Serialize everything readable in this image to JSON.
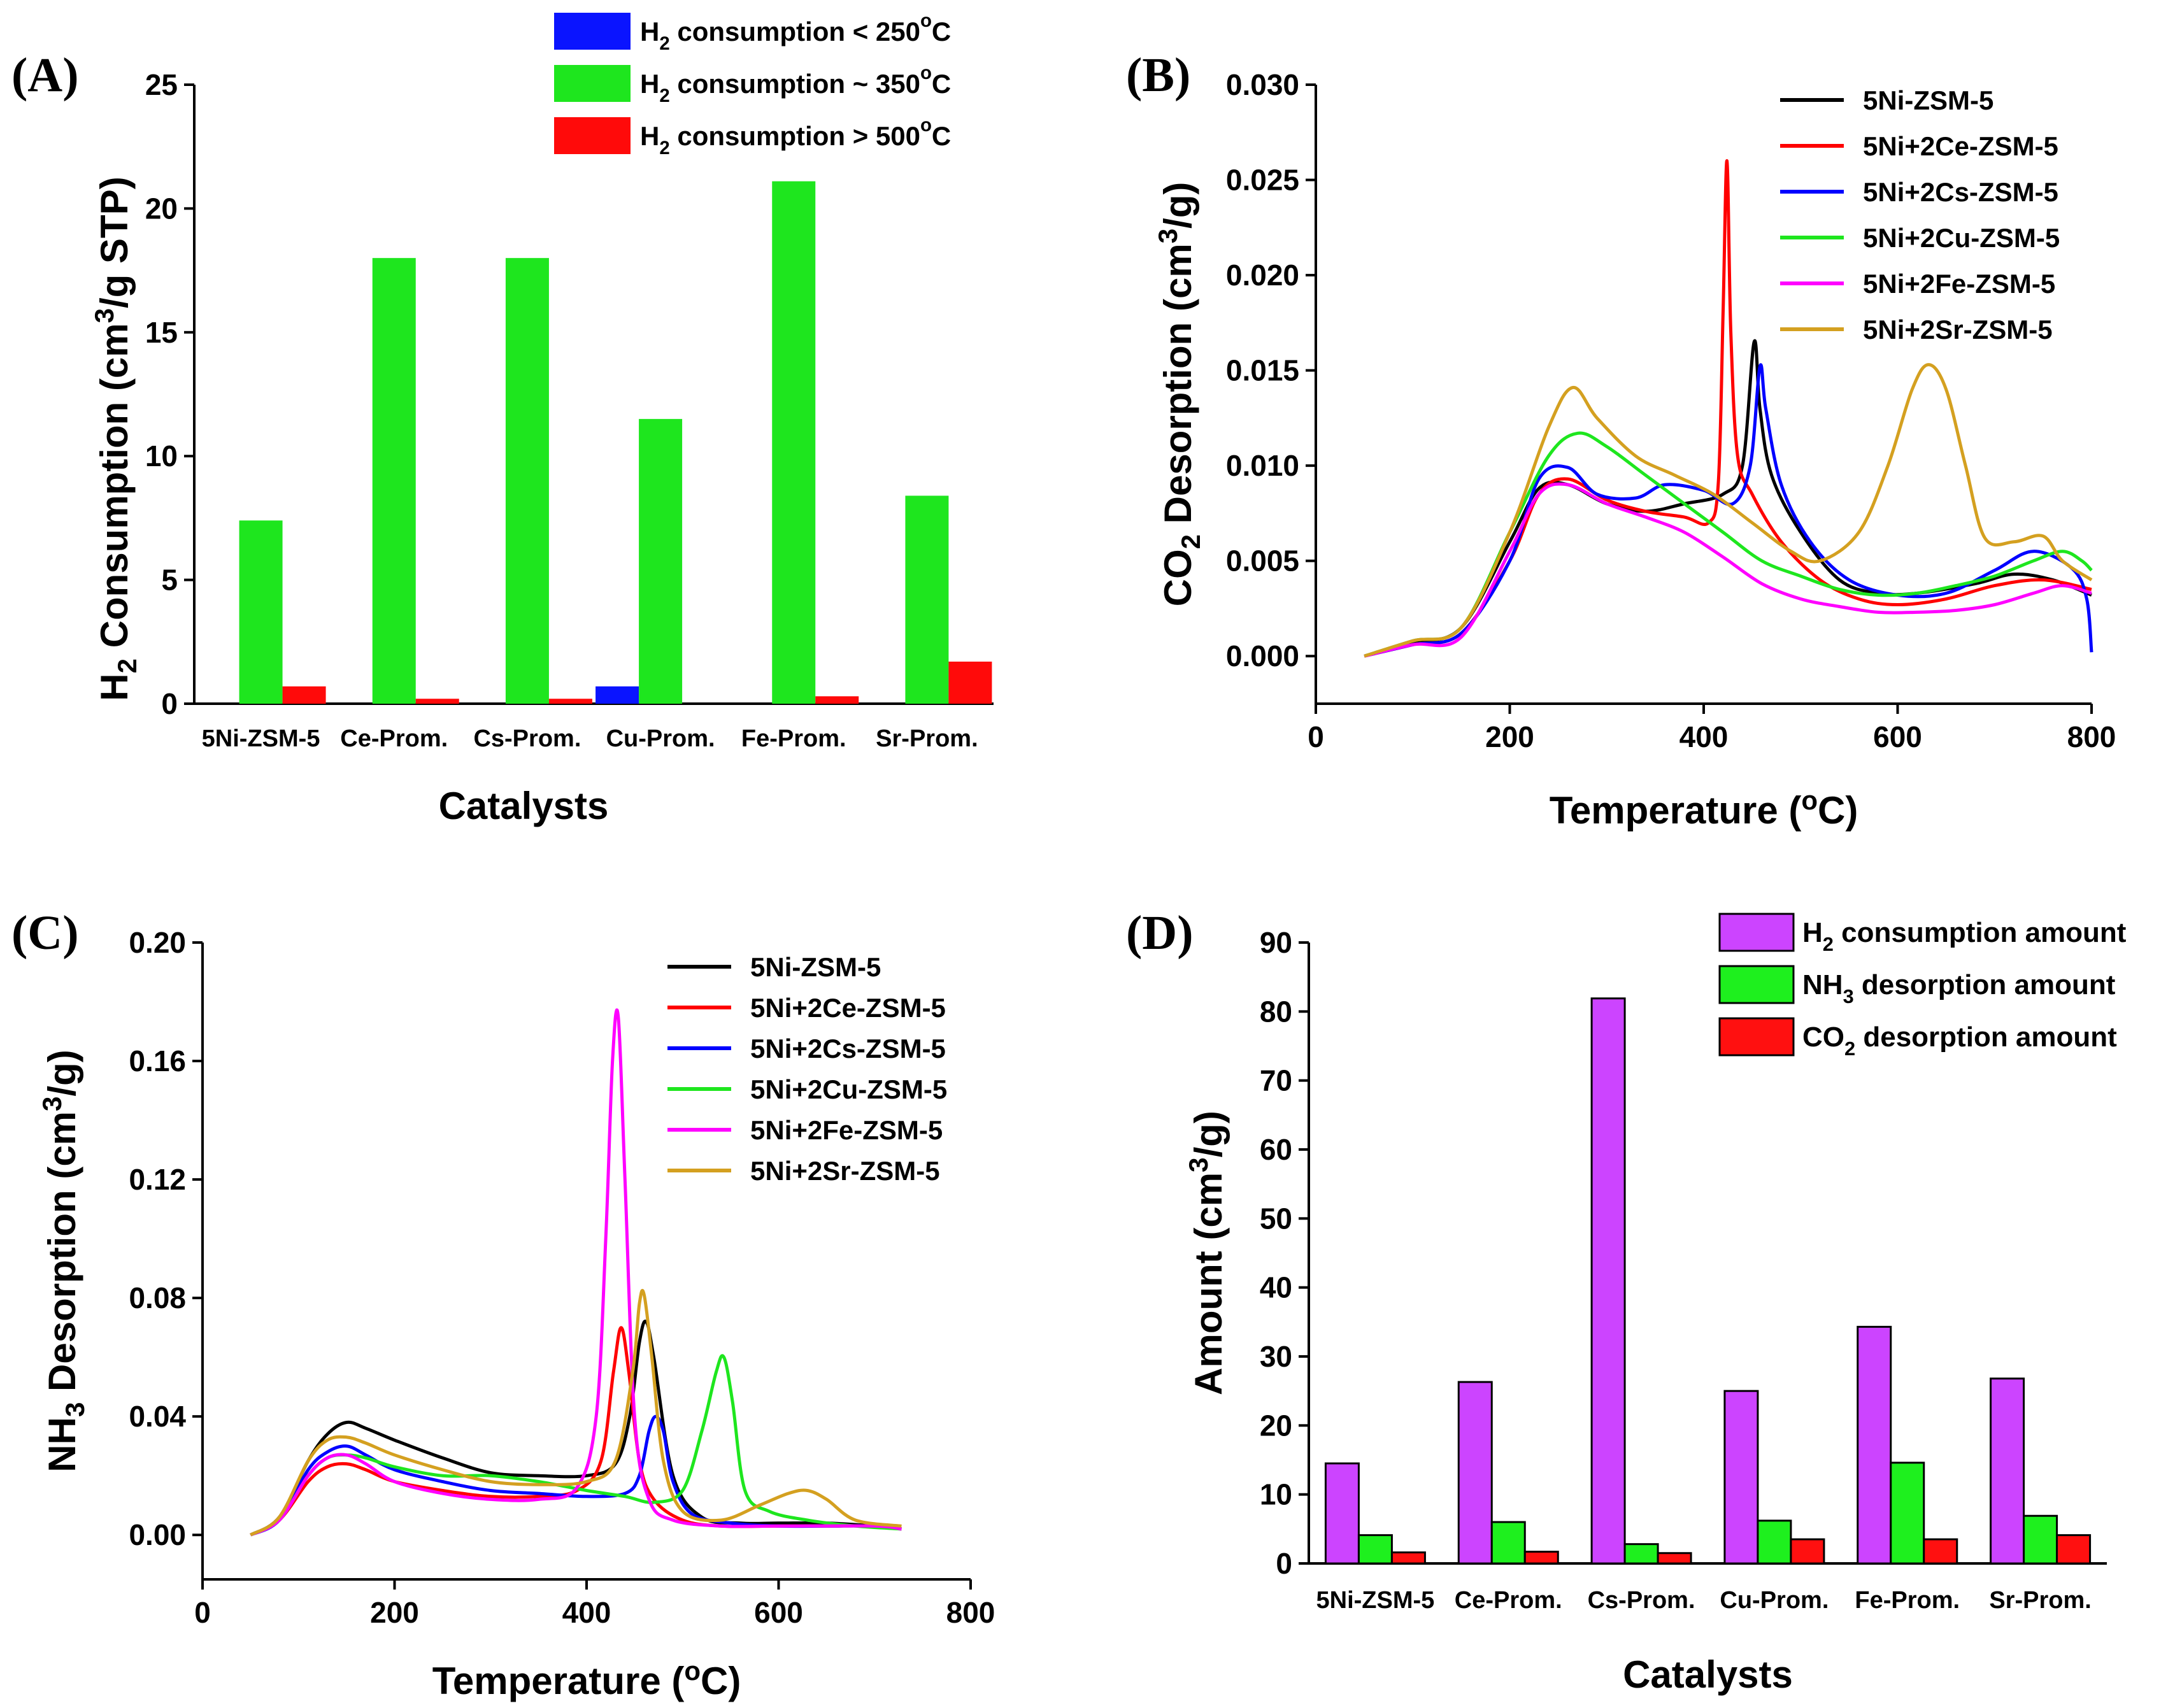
{
  "chart_data": [
    {
      "panel": "(A)",
      "type": "bar",
      "xlabel": "Catalysts",
      "ylabel_parts": [
        "H",
        "2",
        " Consumption (cm",
        "3",
        "/g STP)"
      ],
      "ylim": [
        0,
        25
      ],
      "yticks": [
        "0",
        "5",
        "10",
        "15",
        "20",
        "25"
      ],
      "categories": [
        "5Ni-ZSM-5",
        "Ce-Prom.",
        "Cs-Prom.",
        "Cu-Prom.",
        "Fe-Prom.",
        "Sr-Prom."
      ],
      "series": [
        {
          "name_parts": [
            "H",
            "2",
            " consumption < 250",
            "o",
            "C"
          ],
          "color": "#0a14ff",
          "values": [
            0,
            0,
            0,
            0.7,
            0,
            0
          ]
        },
        {
          "name_parts": [
            "H",
            "2",
            " consumption ~ 350",
            "o",
            "C"
          ],
          "color": "#1ee61e",
          "values": [
            7.4,
            18.0,
            18.0,
            11.5,
            21.1,
            8.4
          ]
        },
        {
          "name_parts": [
            "H",
            "2",
            " consumption > 500",
            "o",
            "C"
          ],
          "color": "#ff0a0a",
          "values": [
            0.7,
            0.2,
            0.2,
            0,
            0.3,
            1.7
          ]
        }
      ],
      "legend": "top-right"
    },
    {
      "panel": "(B)",
      "type": "line",
      "xlabel_parts": [
        "Temperature (",
        "o",
        "C)"
      ],
      "ylabel_parts": [
        "CO",
        "2",
        " Desorption (cm",
        "3",
        "/g)"
      ],
      "xlim": [
        0,
        800
      ],
      "ylim": [
        -0.0025,
        0.03
      ],
      "xticks": [
        "0",
        "200",
        "400",
        "600",
        "800"
      ],
      "yticks": [
        "0.000",
        "0.005",
        "0.010",
        "0.015",
        "0.020",
        "0.025",
        "0.030"
      ],
      "series": [
        {
          "name": "5Ni-ZSM-5",
          "color": "#000000",
          "x": [
            50,
            100,
            150,
            200,
            230,
            260,
            300,
            340,
            380,
            420,
            440,
            452,
            458,
            470,
            500,
            540,
            580,
            620,
            680,
            720,
            760,
            800
          ],
          "y": [
            0.0,
            0.0007,
            0.0015,
            0.006,
            0.0088,
            0.009,
            0.008,
            0.0076,
            0.008,
            0.0085,
            0.01,
            0.0165,
            0.013,
            0.0095,
            0.0065,
            0.004,
            0.0033,
            0.0033,
            0.0038,
            0.0043,
            0.004,
            0.0032
          ]
        },
        {
          "name": "5Ni+2Ce-ZSM-5",
          "color": "#ff0000",
          "x": [
            50,
            100,
            150,
            200,
            230,
            260,
            300,
            340,
            380,
            405,
            415,
            420,
            424,
            428,
            435,
            450,
            480,
            520,
            560,
            600,
            650,
            700,
            750,
            800
          ],
          "y": [
            0.0,
            0.0006,
            0.0012,
            0.005,
            0.0085,
            0.0093,
            0.0082,
            0.0076,
            0.0073,
            0.007,
            0.009,
            0.018,
            0.026,
            0.017,
            0.0105,
            0.0085,
            0.006,
            0.004,
            0.003,
            0.0027,
            0.003,
            0.0037,
            0.004,
            0.0035
          ]
        },
        {
          "name": "5Ni+2Cs-ZSM-5",
          "color": "#0000ff",
          "x": [
            50,
            100,
            150,
            200,
            230,
            260,
            290,
            330,
            360,
            400,
            430,
            448,
            458,
            464,
            480,
            510,
            550,
            600,
            650,
            700,
            740,
            780,
            795,
            800
          ],
          "y": [
            0.0,
            0.0006,
            0.0012,
            0.005,
            0.0093,
            0.0099,
            0.0085,
            0.0083,
            0.009,
            0.0087,
            0.008,
            0.01,
            0.0152,
            0.013,
            0.009,
            0.006,
            0.004,
            0.0032,
            0.0033,
            0.0045,
            0.0055,
            0.0046,
            0.003,
            0.0002
          ]
        },
        {
          "name": "5Ni+2Cu-ZSM-5",
          "color": "#1ee61e",
          "x": [
            50,
            100,
            150,
            200,
            240,
            270,
            300,
            340,
            380,
            420,
            460,
            500,
            540,
            580,
            620,
            660,
            700,
            740,
            770,
            790,
            800
          ],
          "y": [
            0.0,
            0.0008,
            0.0015,
            0.0065,
            0.0105,
            0.0117,
            0.011,
            0.0095,
            0.008,
            0.0065,
            0.005,
            0.0042,
            0.0035,
            0.0032,
            0.0033,
            0.0037,
            0.0042,
            0.005,
            0.0055,
            0.005,
            0.0045
          ]
        },
        {
          "name": "5Ni+2Fe-ZSM-5",
          "color": "#ff00ff",
          "x": [
            50,
            100,
            150,
            200,
            230,
            260,
            300,
            340,
            380,
            420,
            460,
            500,
            540,
            580,
            620,
            660,
            700,
            740,
            770,
            800
          ],
          "y": [
            0.0,
            0.0006,
            0.001,
            0.0055,
            0.0085,
            0.009,
            0.008,
            0.0073,
            0.0065,
            0.0052,
            0.0038,
            0.003,
            0.0026,
            0.0023,
            0.0023,
            0.0024,
            0.0027,
            0.0033,
            0.0037,
            0.0033
          ]
        },
        {
          "name": "5Ni+2Sr-ZSM-5",
          "color": "#d4a020",
          "x": [
            50,
            100,
            150,
            200,
            240,
            265,
            290,
            330,
            370,
            410,
            450,
            490,
            520,
            560,
            590,
            615,
            632,
            650,
            670,
            690,
            720,
            750,
            770,
            800
          ],
          "y": [
            0.0,
            0.0008,
            0.0015,
            0.0065,
            0.012,
            0.0141,
            0.0125,
            0.0105,
            0.0095,
            0.0085,
            0.007,
            0.0055,
            0.005,
            0.0065,
            0.01,
            0.014,
            0.0153,
            0.014,
            0.01,
            0.0062,
            0.006,
            0.0063,
            0.005,
            0.004
          ]
        }
      ],
      "legend": "top-right"
    },
    {
      "panel": "(C)",
      "type": "line",
      "xlabel_parts": [
        "Temperature (",
        "o",
        "C)"
      ],
      "ylabel_parts": [
        "NH",
        "3",
        " Desorption (cm",
        "3",
        "/g)"
      ],
      "xlim": [
        0,
        800
      ],
      "ylim": [
        -0.015,
        0.2
      ],
      "xticks": [
        "0",
        "200",
        "400",
        "600",
        "800"
      ],
      "yticks": [
        "0.00",
        "0.04",
        "0.08",
        "0.12",
        "0.16",
        "0.20"
      ],
      "series": [
        {
          "name": "5Ni-ZSM-5",
          "color": "#000000",
          "x": [
            50,
            80,
            110,
            130,
            150,
            170,
            200,
            250,
            300,
            350,
            400,
            430,
            445,
            455,
            462,
            470,
            490,
            520,
            560,
            600,
            650,
            700,
            728
          ],
          "y": [
            0.0,
            0.006,
            0.025,
            0.034,
            0.038,
            0.036,
            0.032,
            0.026,
            0.021,
            0.02,
            0.02,
            0.024,
            0.04,
            0.065,
            0.072,
            0.06,
            0.02,
            0.006,
            0.004,
            0.004,
            0.004,
            0.003,
            0.002
          ]
        },
        {
          "name": "5Ni+2Ce-ZSM-5",
          "color": "#ff0000",
          "x": [
            50,
            80,
            110,
            130,
            150,
            170,
            200,
            250,
            300,
            350,
            390,
            415,
            428,
            436,
            444,
            455,
            470,
            500,
            540,
            600,
            650,
            700,
            728
          ],
          "y": [
            0.0,
            0.005,
            0.018,
            0.023,
            0.024,
            0.022,
            0.018,
            0.015,
            0.013,
            0.013,
            0.015,
            0.025,
            0.055,
            0.07,
            0.055,
            0.025,
            0.012,
            0.005,
            0.003,
            0.003,
            0.003,
            0.003,
            0.002
          ]
        },
        {
          "name": "5Ni+2Cs-ZSM-5",
          "color": "#0000ff",
          "x": [
            50,
            80,
            110,
            130,
            150,
            170,
            200,
            250,
            300,
            350,
            400,
            440,
            455,
            465,
            472,
            480,
            490,
            510,
            550,
            600,
            650,
            700,
            728
          ],
          "y": [
            0.0,
            0.005,
            0.022,
            0.028,
            0.03,
            0.027,
            0.022,
            0.018,
            0.015,
            0.014,
            0.013,
            0.014,
            0.02,
            0.035,
            0.04,
            0.035,
            0.018,
            0.007,
            0.004,
            0.003,
            0.003,
            0.003,
            0.002
          ]
        },
        {
          "name": "5Ni+2Cu-ZSM-5",
          "color": "#1ee61e",
          "x": [
            50,
            80,
            110,
            130,
            150,
            170,
            200,
            250,
            300,
            350,
            400,
            440,
            470,
            500,
            520,
            535,
            543,
            552,
            565,
            590,
            630,
            680,
            728
          ],
          "y": [
            0.0,
            0.005,
            0.02,
            0.026,
            0.027,
            0.026,
            0.023,
            0.02,
            0.02,
            0.018,
            0.015,
            0.013,
            0.011,
            0.015,
            0.035,
            0.055,
            0.06,
            0.045,
            0.015,
            0.008,
            0.005,
            0.003,
            0.002
          ]
        },
        {
          "name": "5Ni+2Fe-ZSM-5",
          "color": "#ff00ff",
          "x": [
            50,
            80,
            110,
            130,
            150,
            170,
            200,
            250,
            300,
            350,
            390,
            410,
            420,
            427,
            433,
            440,
            450,
            465,
            490,
            540,
            600,
            700,
            728
          ],
          "y": [
            0.0,
            0.005,
            0.02,
            0.026,
            0.027,
            0.024,
            0.018,
            0.014,
            0.012,
            0.012,
            0.016,
            0.04,
            0.1,
            0.16,
            0.175,
            0.12,
            0.04,
            0.012,
            0.005,
            0.003,
            0.003,
            0.003,
            0.002
          ]
        },
        {
          "name": "5Ni+2Sr-ZSM-5",
          "color": "#d4a020",
          "x": [
            50,
            80,
            110,
            130,
            150,
            170,
            200,
            250,
            300,
            350,
            400,
            430,
            448,
            455,
            460,
            468,
            480,
            500,
            540,
            580,
            610,
            630,
            650,
            680,
            728
          ],
          "y": [
            0.0,
            0.006,
            0.025,
            0.032,
            0.033,
            0.031,
            0.027,
            0.022,
            0.018,
            0.017,
            0.018,
            0.025,
            0.055,
            0.078,
            0.081,
            0.06,
            0.025,
            0.008,
            0.005,
            0.01,
            0.014,
            0.015,
            0.012,
            0.005,
            0.003
          ]
        }
      ],
      "legend": "top-right"
    },
    {
      "panel": "(D)",
      "type": "bar",
      "xlabel": "Catalysts",
      "ylabel_parts": [
        "Amount (cm",
        "3",
        "/g)"
      ],
      "ylim": [
        0,
        90
      ],
      "yticks": [
        "0",
        "10",
        "20",
        "30",
        "40",
        "50",
        "60",
        "70",
        "80",
        "90"
      ],
      "categories": [
        "5Ni-ZSM-5",
        "Ce-Prom.",
        "Cs-Prom.",
        "Cu-Prom.",
        "Fe-Prom.",
        "Sr-Prom."
      ],
      "series": [
        {
          "name_parts": [
            "H",
            "2",
            " consumption amount"
          ],
          "color": "#cc44ff",
          "values": [
            14.5,
            26.3,
            81.9,
            25.0,
            34.3,
            26.8
          ]
        },
        {
          "name_parts": [
            "NH",
            "3",
            " desorption amount"
          ],
          "color": "#1ef01e",
          "values": [
            4.1,
            6.0,
            2.8,
            6.2,
            14.6,
            6.9
          ]
        },
        {
          "name_parts": [
            "CO",
            "2",
            " desorption amount"
          ],
          "color": "#ff1010",
          "values": [
            1.6,
            1.7,
            1.5,
            3.5,
            3.5,
            4.1
          ]
        }
      ],
      "legend": "top-right"
    }
  ]
}
